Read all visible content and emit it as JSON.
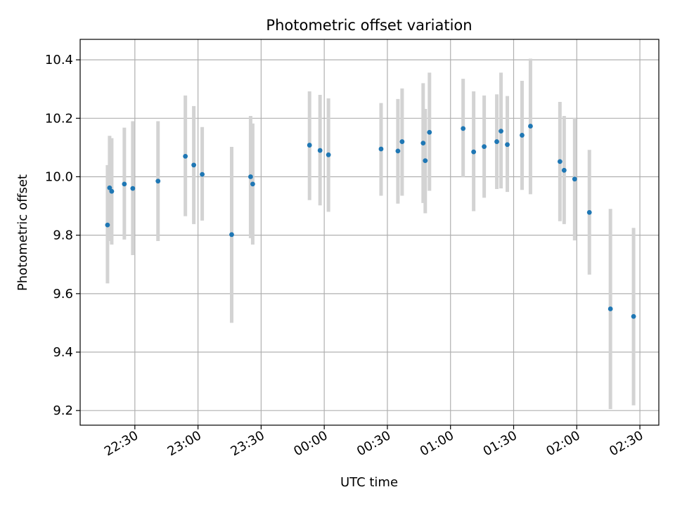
{
  "chart_data": {
    "type": "scatter",
    "title": "Photometric offset variation",
    "xlabel": "UTC time",
    "ylabel": "Photometric offset",
    "grid": true,
    "legend": "none",
    "x_ticks": [
      "22:30",
      "23:00",
      "23:30",
      "00:00",
      "00:30",
      "01:00",
      "01:30",
      "02:00",
      "02:30"
    ],
    "y_ticks": [
      "9.2",
      "9.4",
      "9.6",
      "9.8",
      "10.0",
      "10.2",
      "10.4"
    ],
    "xlim": [
      "22:04",
      "02:39"
    ],
    "ylim": [
      9.15,
      10.47
    ],
    "colors": {
      "marker": "#1f77b4",
      "errorbar": "#d3d3d3",
      "grid": "#b0b0b0"
    },
    "series": [
      {
        "points": [
          {
            "x": "22:17",
            "y": 9.835,
            "lo": 9.635,
            "hi": 10.04
          },
          {
            "x": "22:18",
            "y": 9.962,
            "lo": 9.78,
            "hi": 10.14
          },
          {
            "x": "22:19",
            "y": 9.95,
            "lo": 9.768,
            "hi": 10.132
          },
          {
            "x": "22:25",
            "y": 9.975,
            "lo": 9.785,
            "hi": 10.168
          },
          {
            "x": "22:29",
            "y": 9.96,
            "lo": 9.732,
            "hi": 10.19
          },
          {
            "x": "22:41",
            "y": 9.985,
            "lo": 9.78,
            "hi": 10.19
          },
          {
            "x": "22:54",
            "y": 10.07,
            "lo": 9.865,
            "hi": 10.278
          },
          {
            "x": "22:58",
            "y": 10.04,
            "lo": 9.838,
            "hi": 10.242
          },
          {
            "x": "23:02",
            "y": 10.008,
            "lo": 9.85,
            "hi": 10.17
          },
          {
            "x": "23:16",
            "y": 9.802,
            "lo": 9.5,
            "hi": 10.102
          },
          {
            "x": "23:25",
            "y": 10.0,
            "lo": 9.79,
            "hi": 10.208
          },
          {
            "x": "23:26",
            "y": 9.975,
            "lo": 9.768,
            "hi": 10.182
          },
          {
            "x": "23:53",
            "y": 10.108,
            "lo": 9.92,
            "hi": 10.292
          },
          {
            "x": "23:58",
            "y": 10.09,
            "lo": 9.902,
            "hi": 10.28
          },
          {
            "x": "00:02",
            "y": 10.075,
            "lo": 9.88,
            "hi": 10.268
          },
          {
            "x": "00:27",
            "y": 10.095,
            "lo": 9.935,
            "hi": 10.252
          },
          {
            "x": "00:35",
            "y": 10.088,
            "lo": 9.908,
            "hi": 10.266
          },
          {
            "x": "00:37",
            "y": 10.12,
            "lo": 9.935,
            "hi": 10.302
          },
          {
            "x": "00:47",
            "y": 10.115,
            "lo": 9.91,
            "hi": 10.32
          },
          {
            "x": "00:48",
            "y": 10.055,
            "lo": 9.875,
            "hi": 10.232
          },
          {
            "x": "00:50",
            "y": 10.152,
            "lo": 9.952,
            "hi": 10.356
          },
          {
            "x": "01:06",
            "y": 10.165,
            "lo": 9.998,
            "hi": 10.335
          },
          {
            "x": "01:11",
            "y": 10.085,
            "lo": 9.882,
            "hi": 10.292
          },
          {
            "x": "01:16",
            "y": 10.103,
            "lo": 9.928,
            "hi": 10.278
          },
          {
            "x": "01:22",
            "y": 10.12,
            "lo": 9.958,
            "hi": 10.282
          },
          {
            "x": "01:24",
            "y": 10.156,
            "lo": 9.96,
            "hi": 10.356
          },
          {
            "x": "01:27",
            "y": 10.11,
            "lo": 9.948,
            "hi": 10.276
          },
          {
            "x": "01:34",
            "y": 10.142,
            "lo": 9.955,
            "hi": 10.328
          },
          {
            "x": "01:38",
            "y": 10.173,
            "lo": 9.94,
            "hi": 10.404
          },
          {
            "x": "01:52",
            "y": 10.052,
            "lo": 9.848,
            "hi": 10.256
          },
          {
            "x": "01:54",
            "y": 10.022,
            "lo": 9.838,
            "hi": 10.208
          },
          {
            "x": "01:59",
            "y": 9.992,
            "lo": 9.782,
            "hi": 10.202
          },
          {
            "x": "02:06",
            "y": 9.878,
            "lo": 9.665,
            "hi": 10.092
          },
          {
            "x": "02:16",
            "y": 9.548,
            "lo": 9.205,
            "hi": 9.89
          },
          {
            "x": "02:27",
            "y": 9.522,
            "lo": 9.218,
            "hi": 9.825
          }
        ]
      }
    ]
  }
}
